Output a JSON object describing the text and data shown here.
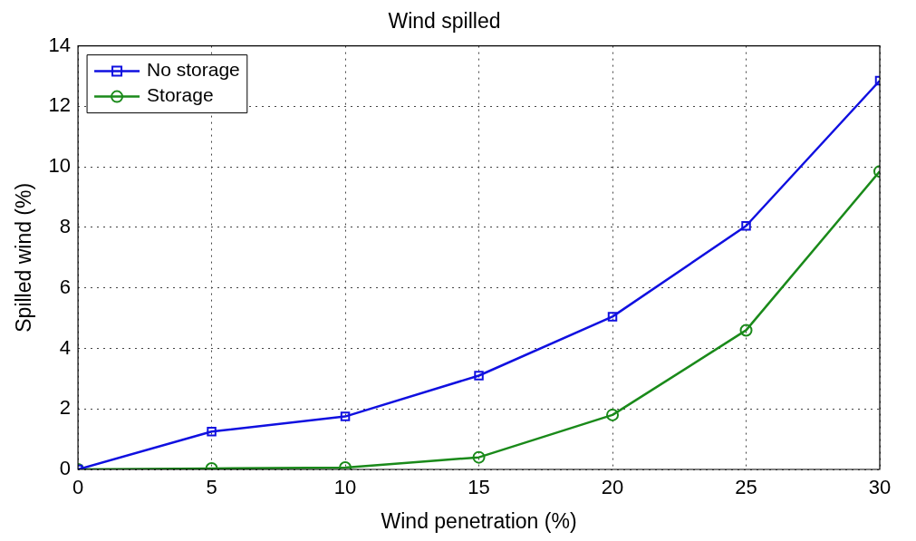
{
  "chart_data": {
    "type": "line",
    "title": "Wind spilled",
    "xlabel": "Wind penetration (%)",
    "ylabel": "Spilled wind (%)",
    "x": [
      0,
      5,
      10,
      15,
      20,
      25,
      30
    ],
    "series": [
      {
        "name": "No storage",
        "color": "#1010e0",
        "marker": "square",
        "values": [
          0,
          1.25,
          1.75,
          3.1,
          5.05,
          8.05,
          12.85
        ]
      },
      {
        "name": "Storage",
        "color": "#1a8a1a",
        "marker": "circle",
        "values": [
          0,
          0.03,
          0.06,
          0.4,
          1.8,
          4.6,
          9.85
        ]
      }
    ],
    "xlim": [
      0,
      30
    ],
    "xticks": [
      0,
      5,
      10,
      15,
      20,
      25,
      30
    ],
    "ylim": [
      0,
      14
    ],
    "yticks": [
      0,
      2,
      4,
      6,
      8,
      10,
      12,
      14
    ],
    "grid": true,
    "legend": "top left",
    "line_style": "solid"
  }
}
